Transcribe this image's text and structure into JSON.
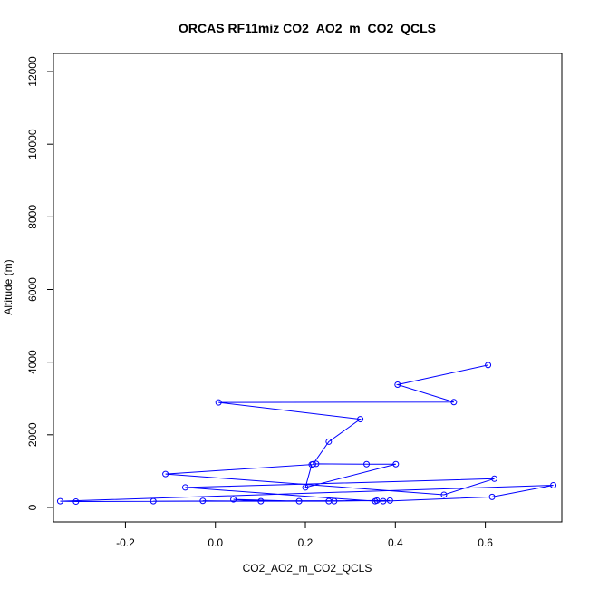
{
  "chart_data": {
    "type": "line",
    "title": "ORCAS RF11miz CO2_AO2_m_CO2_QCLS",
    "xlabel": "CO2_AO2_m_CO2_QCLS",
    "ylabel": "Altitude (m)",
    "xlim": [
      -0.36,
      0.77
    ],
    "ylim": [
      -400,
      12500
    ],
    "x_ticks": [
      -0.2,
      0.0,
      0.2,
      0.4,
      0.6
    ],
    "x_tick_labels": [
      "-0.2",
      "0.0",
      "0.2",
      "0.4",
      "0.6"
    ],
    "y_ticks": [
      0,
      2000,
      4000,
      6000,
      8000,
      10000,
      12000
    ],
    "y_tick_labels": [
      "0",
      "2000",
      "4000",
      "6000",
      "8000",
      "10000",
      "12000"
    ],
    "grid": false,
    "series": [
      {
        "color": "#0000ff",
        "marker": "open-circle",
        "points": [
          {
            "x": 0.606,
            "y": 3920
          },
          {
            "x": 0.405,
            "y": 3380
          },
          {
            "x": 0.53,
            "y": 2900
          },
          {
            "x": 0.007,
            "y": 2890
          },
          {
            "x": 0.322,
            "y": 2430
          },
          {
            "x": 0.252,
            "y": 1810
          },
          {
            "x": 0.217,
            "y": 1190
          },
          {
            "x": 0.224,
            "y": 1200
          },
          {
            "x": 0.336,
            "y": 1190
          },
          {
            "x": 0.401,
            "y": 1190
          },
          {
            "x": 0.2,
            "y": 550
          },
          {
            "x": 0.214,
            "y": 1180
          },
          {
            "x": -0.111,
            "y": 920
          },
          {
            "x": 0.508,
            "y": 350
          },
          {
            "x": 0.62,
            "y": 790
          },
          {
            "x": -0.067,
            "y": 550
          },
          {
            "x": 0.355,
            "y": 170
          },
          {
            "x": 0.373,
            "y": 170
          },
          {
            "x": 0.615,
            "y": 290
          },
          {
            "x": 0.751,
            "y": 610
          },
          {
            "x": -0.345,
            "y": 170
          },
          {
            "x": -0.31,
            "y": 160
          },
          {
            "x": 0.388,
            "y": 190
          },
          {
            "x": -0.138,
            "y": 170
          },
          {
            "x": 0.264,
            "y": 170
          },
          {
            "x": -0.028,
            "y": 180
          },
          {
            "x": 0.101,
            "y": 170
          },
          {
            "x": 0.04,
            "y": 220
          },
          {
            "x": 0.186,
            "y": 170
          },
          {
            "x": 0.252,
            "y": 170
          },
          {
            "x": 0.359,
            "y": 190
          }
        ]
      }
    ]
  }
}
